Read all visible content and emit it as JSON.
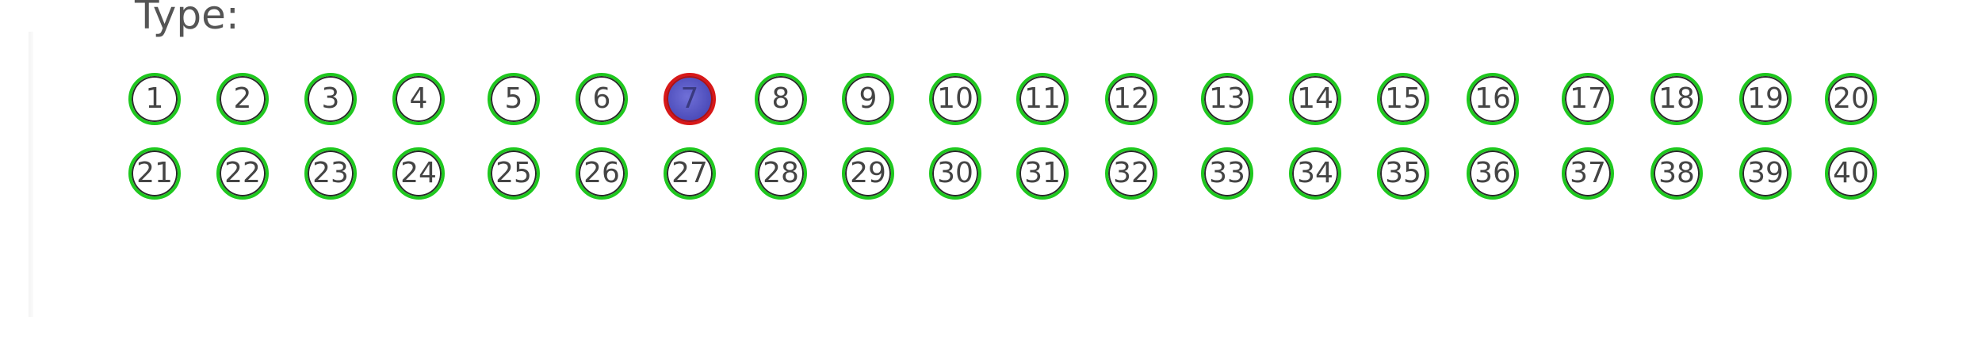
{
  "form": {
    "label": "Type:"
  },
  "bubbles": {
    "row1": [
      "1",
      "2",
      "3",
      "4",
      "5",
      "6",
      "7",
      "8",
      "9",
      "10",
      "11",
      "12",
      "13",
      "14",
      "15",
      "16",
      "17",
      "18",
      "19",
      "20"
    ],
    "row2": [
      "21",
      "22",
      "23",
      "24",
      "25",
      "26",
      "27",
      "28",
      "29",
      "30",
      "31",
      "32",
      "33",
      "34",
      "35",
      "36",
      "37",
      "38",
      "39",
      "40"
    ],
    "selected": "7"
  },
  "colors": {
    "detected_outline": "#1ec81e",
    "selected_outline": "#d81818",
    "selected_fill": "#4a4ab8"
  }
}
